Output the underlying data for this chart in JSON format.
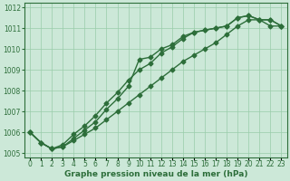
{
  "xlabel": "Graphe pression niveau de la mer (hPa)",
  "hours": [
    0,
    1,
    2,
    3,
    4,
    5,
    6,
    7,
    8,
    9,
    10,
    11,
    12,
    13,
    14,
    15,
    16,
    17,
    18,
    19,
    20,
    21,
    22,
    23
  ],
  "line1": [
    1006.0,
    1005.5,
    1005.2,
    1005.3,
    1005.7,
    1006.1,
    1006.5,
    1007.1,
    1007.6,
    1008.2,
    1009.5,
    1009.6,
    1010.0,
    1010.2,
    1010.6,
    1010.8,
    1010.9,
    1011.0,
    1011.1,
    1011.5,
    1011.6,
    1011.4,
    1011.4,
    1011.1
  ],
  "line2": [
    1006.0,
    1005.5,
    1005.2,
    1005.4,
    1005.9,
    1006.3,
    1006.8,
    1007.4,
    1007.9,
    1008.5,
    1009.0,
    1009.3,
    1009.8,
    1010.1,
    1010.5,
    1010.8,
    1010.9,
    1011.0,
    1011.1,
    1011.5,
    1011.6,
    1011.4,
    1011.4,
    1011.1
  ],
  "line3": [
    1006.0,
    1005.5,
    1005.2,
    1005.3,
    1005.6,
    1005.9,
    1006.2,
    1006.6,
    1007.0,
    1007.4,
    1007.8,
    1008.2,
    1008.6,
    1009.0,
    1009.4,
    1009.7,
    1010.0,
    1010.3,
    1010.7,
    1011.1,
    1011.4,
    1011.4,
    1011.1,
    1011.1
  ],
  "ylim": [
    1004.8,
    1012.2
  ],
  "yticks": [
    1005,
    1006,
    1007,
    1008,
    1009,
    1010,
    1011,
    1012
  ],
  "background_color": "#cce8d8",
  "grid_color": "#99ccaa",
  "line_color": "#2d6e3a",
  "marker_size": 2.5,
  "line_width": 1.0,
  "xlabel_fontsize": 6.5,
  "tick_fontsize": 5.5
}
